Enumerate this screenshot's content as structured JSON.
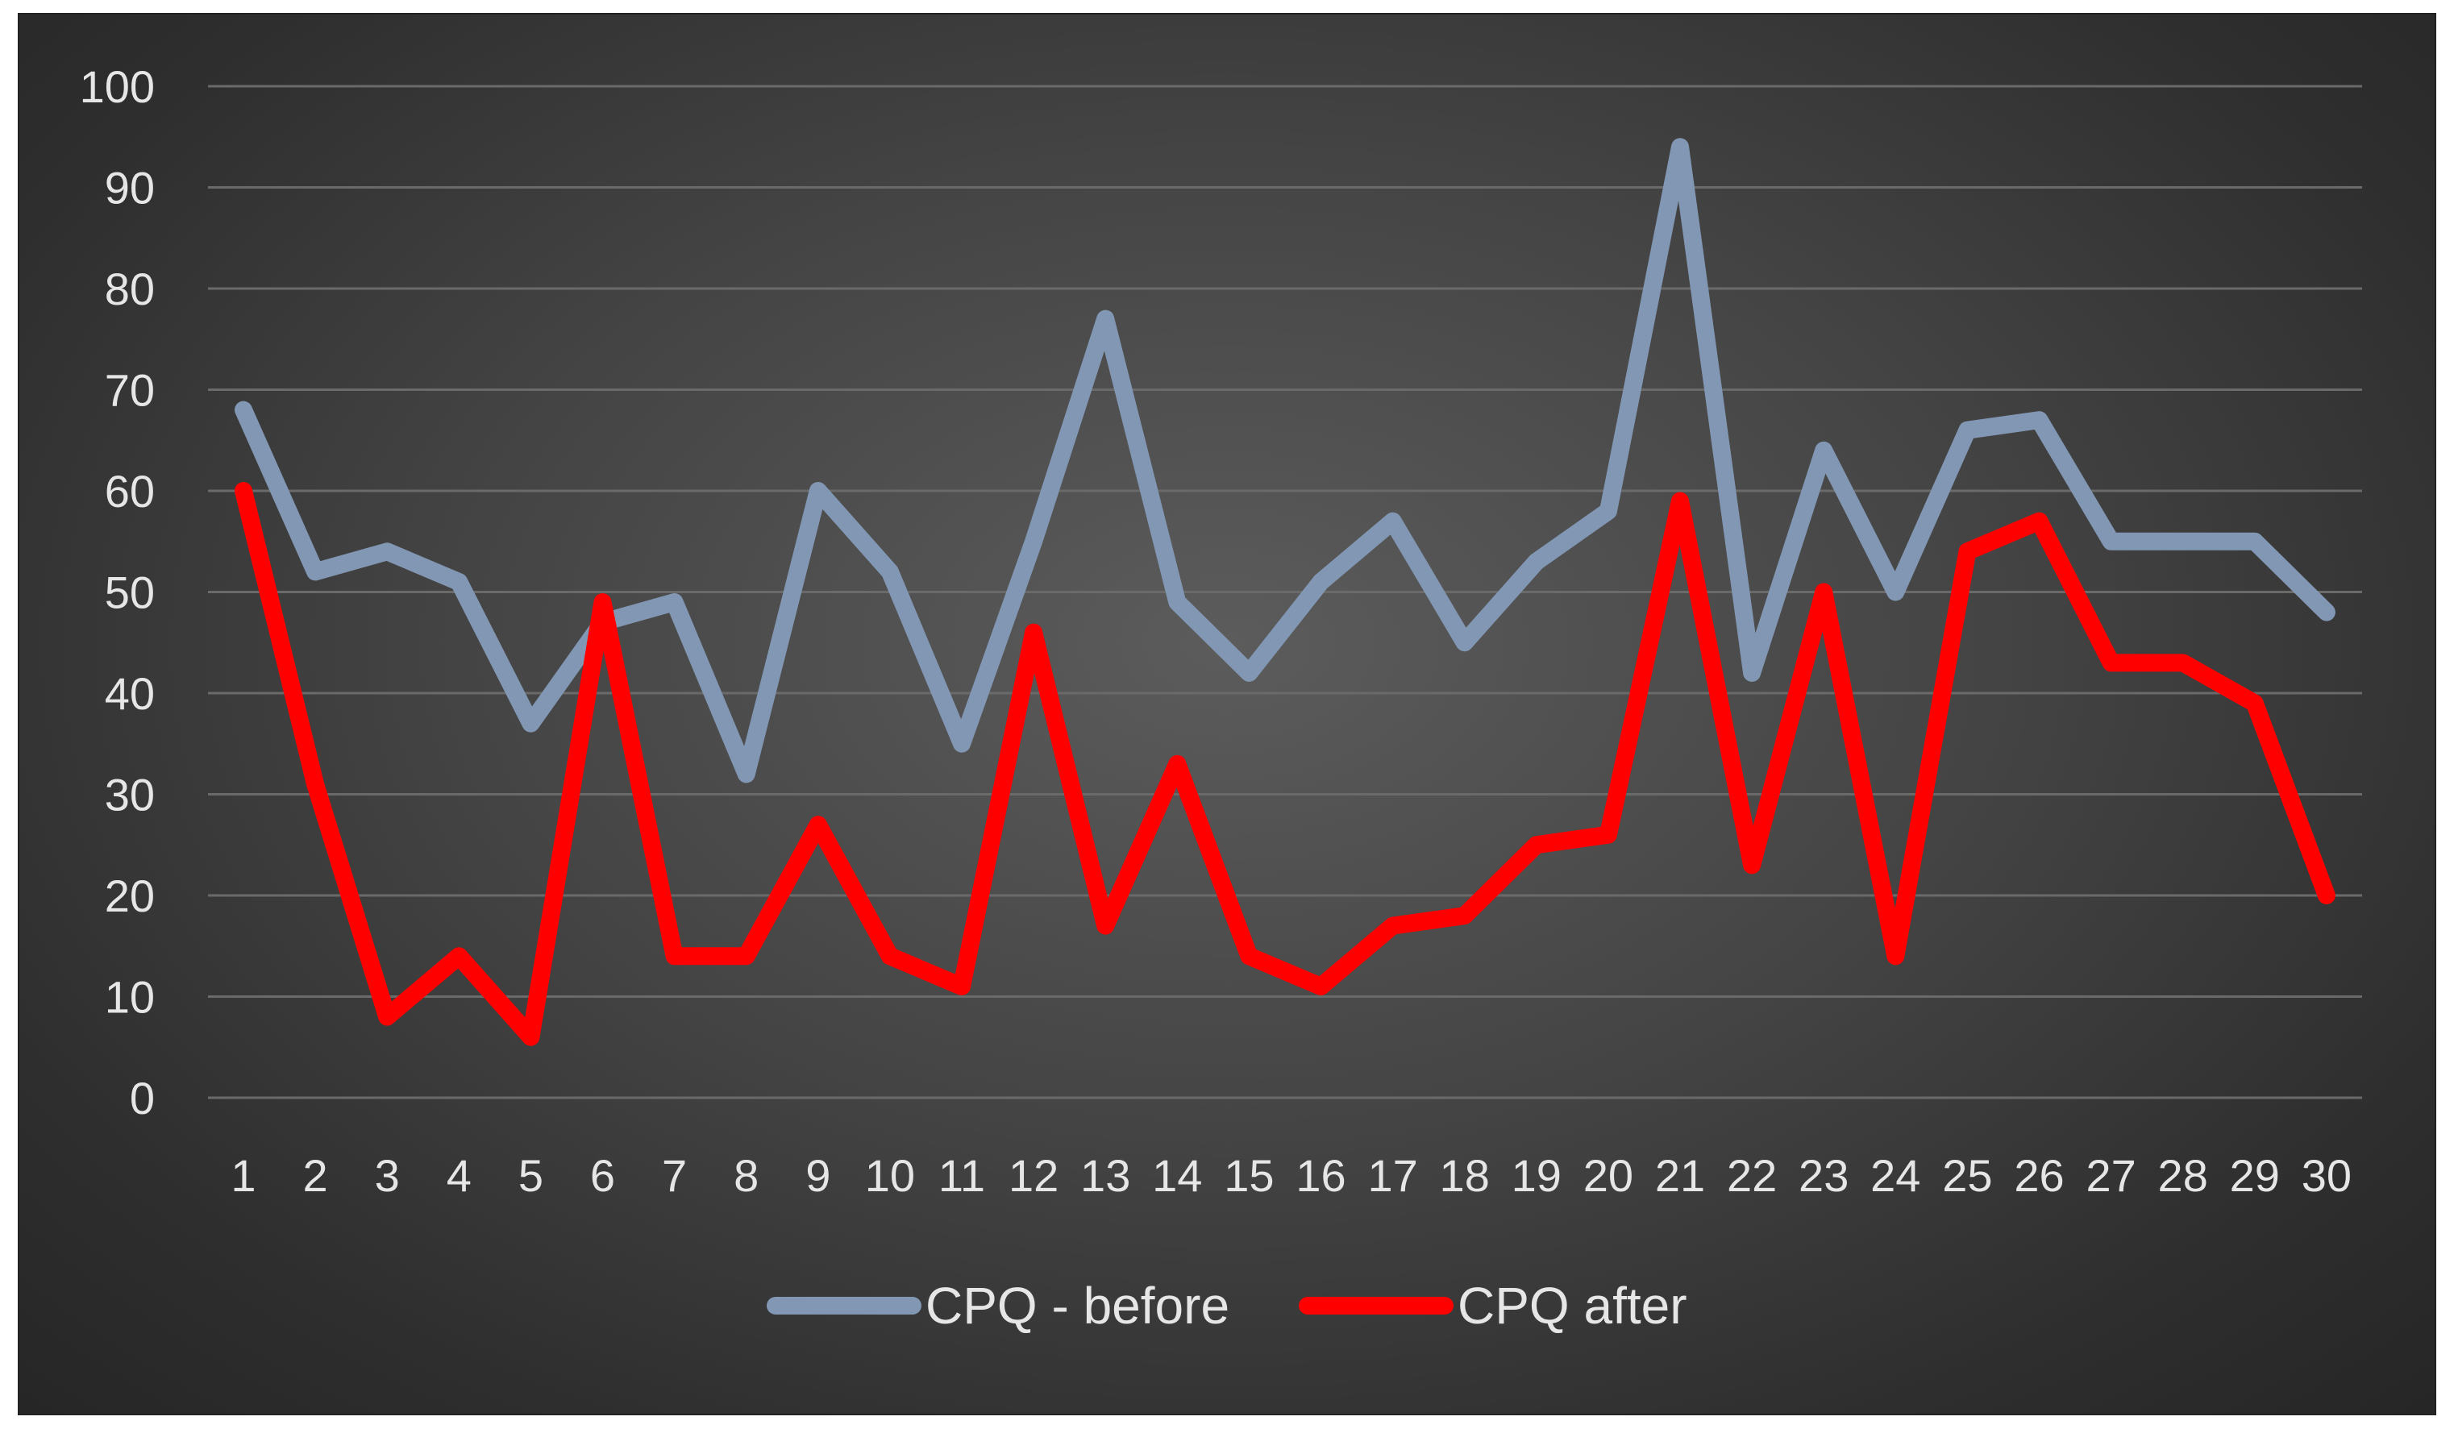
{
  "chart_data": {
    "type": "line",
    "title": "",
    "xlabel": "",
    "ylabel": "",
    "categories": [
      "1",
      "2",
      "3",
      "4",
      "5",
      "6",
      "7",
      "8",
      "9",
      "10",
      "11",
      "12",
      "13",
      "14",
      "15",
      "16",
      "17",
      "18",
      "19",
      "20",
      "21",
      "22",
      "23",
      "24",
      "25",
      "26",
      "27",
      "28",
      "29",
      "30"
    ],
    "ylim": [
      0,
      100
    ],
    "yticks": [
      0,
      10,
      20,
      30,
      40,
      50,
      60,
      70,
      80,
      90,
      100
    ],
    "grid": true,
    "legend_position": "bottom",
    "series": [
      {
        "name": "CPQ - before",
        "color": "#8297b3",
        "values": [
          68,
          52,
          54,
          51,
          37,
          47,
          49,
          32,
          60,
          52,
          35,
          55,
          77,
          49,
          42,
          51,
          57,
          45,
          53,
          58,
          94,
          42,
          64,
          50,
          66,
          67,
          55,
          55,
          55,
          48
        ]
      },
      {
        "name": "CPQ after",
        "color": "#ff0000",
        "values": [
          60,
          31,
          8,
          14,
          6,
          49,
          14,
          14,
          27,
          14,
          11,
          46,
          17,
          33,
          14,
          11,
          17,
          18,
          25,
          26,
          59,
          23,
          50,
          14,
          54,
          57,
          43,
          43,
          39,
          20
        ]
      }
    ]
  }
}
